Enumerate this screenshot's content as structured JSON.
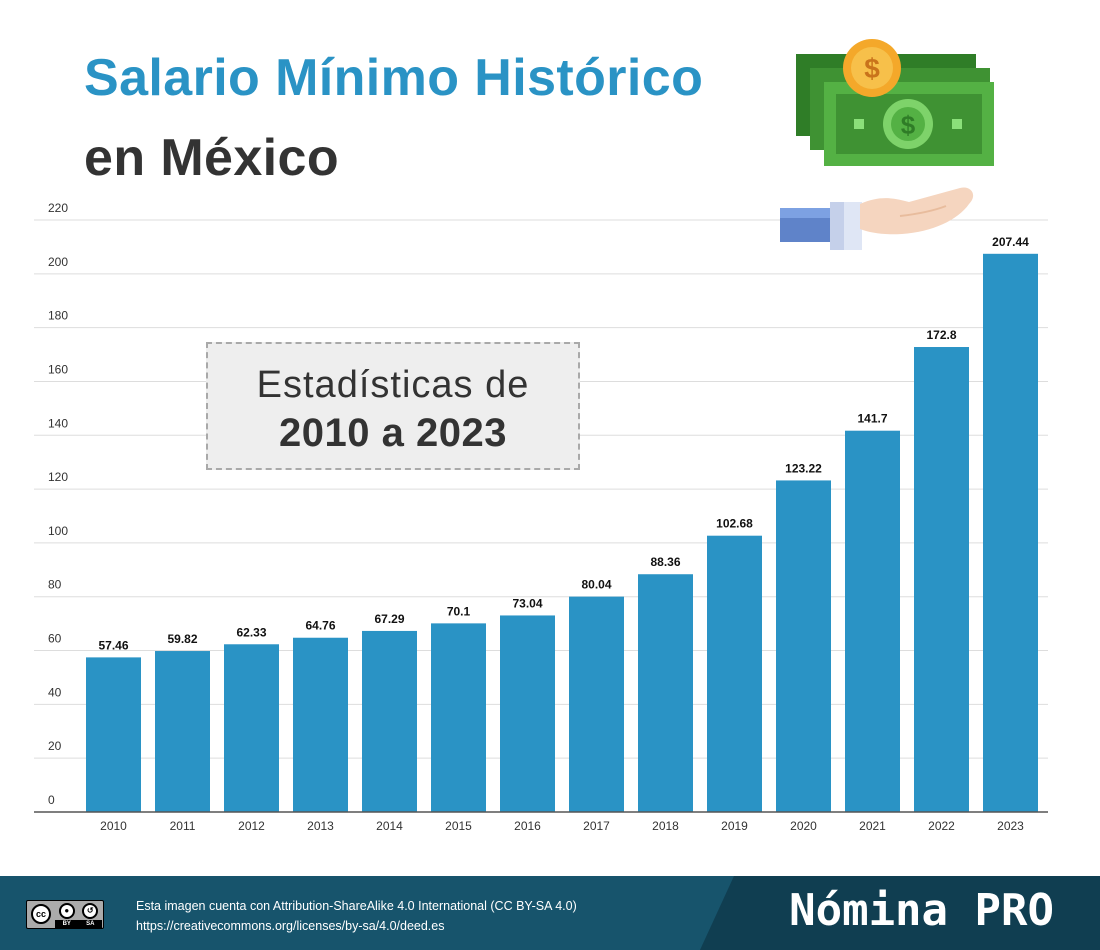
{
  "header": {
    "title_line_1": "Salario Mínimo Histórico",
    "title_line_2": "en México"
  },
  "stats_box": {
    "line_1": "Estadísticas de",
    "line_2": "2010 a 2023"
  },
  "illustration": {
    "icons": [
      "dollar-coin-icon",
      "dollar-bill-icon",
      "open-hand-icon"
    ]
  },
  "colors": {
    "title_blue": "#2a93c5",
    "bar_blue": "#2a93c5",
    "footer_teal": "#17546c",
    "footer_dark": "#103e51",
    "bill_green": "#54b144",
    "coin_gold": "#f4a82a"
  },
  "chart_data": {
    "type": "bar",
    "title": "",
    "xlabel": "",
    "ylabel": "",
    "categories": [
      "2010",
      "2011",
      "2012",
      "2013",
      "2014",
      "2015",
      "2016",
      "2017",
      "2018",
      "2019",
      "2020",
      "2021",
      "2022",
      "2023"
    ],
    "values": [
      57.46,
      59.82,
      62.33,
      64.76,
      67.29,
      70.1,
      73.04,
      80.04,
      88.36,
      102.68,
      123.22,
      141.7,
      172.8,
      207.44
    ],
    "value_labels": [
      "57.46",
      "59.82",
      "62.33",
      "64.76",
      "67.29",
      "70.1",
      "73.04",
      "80.04",
      "88.36",
      "102.68",
      "123.22",
      "141.7",
      "172.8",
      "207.44"
    ],
    "ylim": [
      0,
      220
    ],
    "yticks": [
      0,
      20,
      40,
      60,
      80,
      100,
      120,
      140,
      160,
      180,
      200,
      220
    ],
    "ytick_labels": [
      "0",
      "20",
      "40",
      "60",
      "80",
      "100",
      "120",
      "140",
      "160",
      "180",
      "200",
      "220"
    ],
    "grid": true,
    "legend": "none"
  },
  "footer": {
    "license_line_1": "Esta imagen cuenta con Attribution-ShareAlike 4.0 International (CC BY-SA 4.0)",
    "license_line_2": "https://creativecommons.org/licenses/by-sa/4.0/deed.es",
    "cc_badge": {
      "logo": "cc",
      "by": "BY",
      "sa": "SA"
    },
    "brand": "Nómina PRO"
  }
}
